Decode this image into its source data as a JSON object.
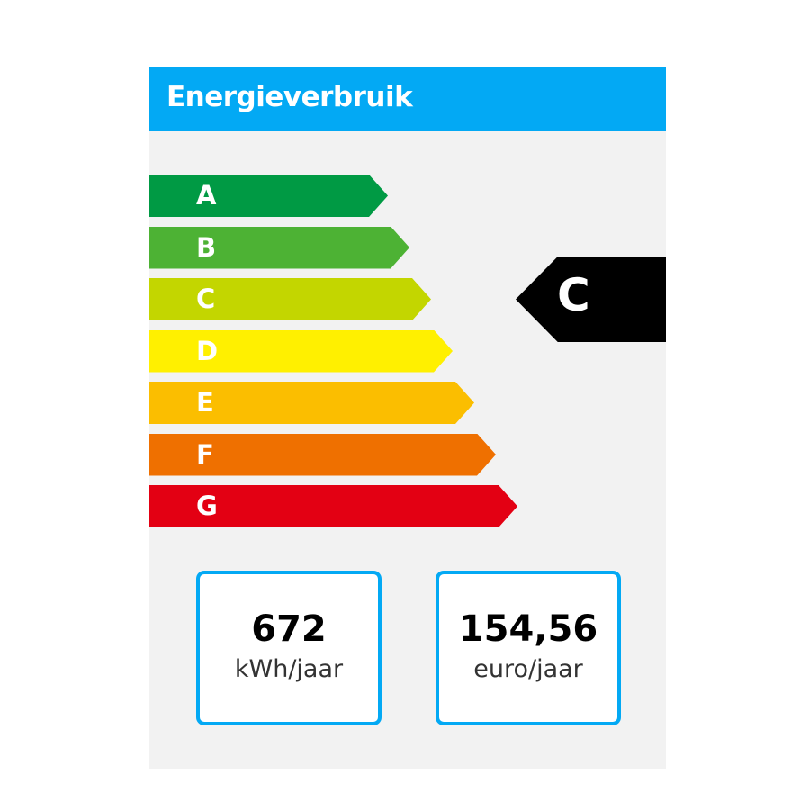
{
  "header": {
    "title": "Energieverbruik",
    "color": "#03a9f4"
  },
  "scale": [
    {
      "label": "A",
      "color": "#009a44"
    },
    {
      "label": "B",
      "color": "#4db234"
    },
    {
      "label": "C",
      "color": "#c3d600"
    },
    {
      "label": "D",
      "color": "#fff000"
    },
    {
      "label": "E",
      "color": "#fbbe00"
    },
    {
      "label": "F",
      "color": "#ef7000"
    },
    {
      "label": "G",
      "color": "#e30013"
    }
  ],
  "current_label": "C",
  "stats": [
    {
      "value": "672",
      "unit": "kWh/jaar"
    },
    {
      "value": "154,56",
      "unit": "euro/jaar"
    }
  ]
}
